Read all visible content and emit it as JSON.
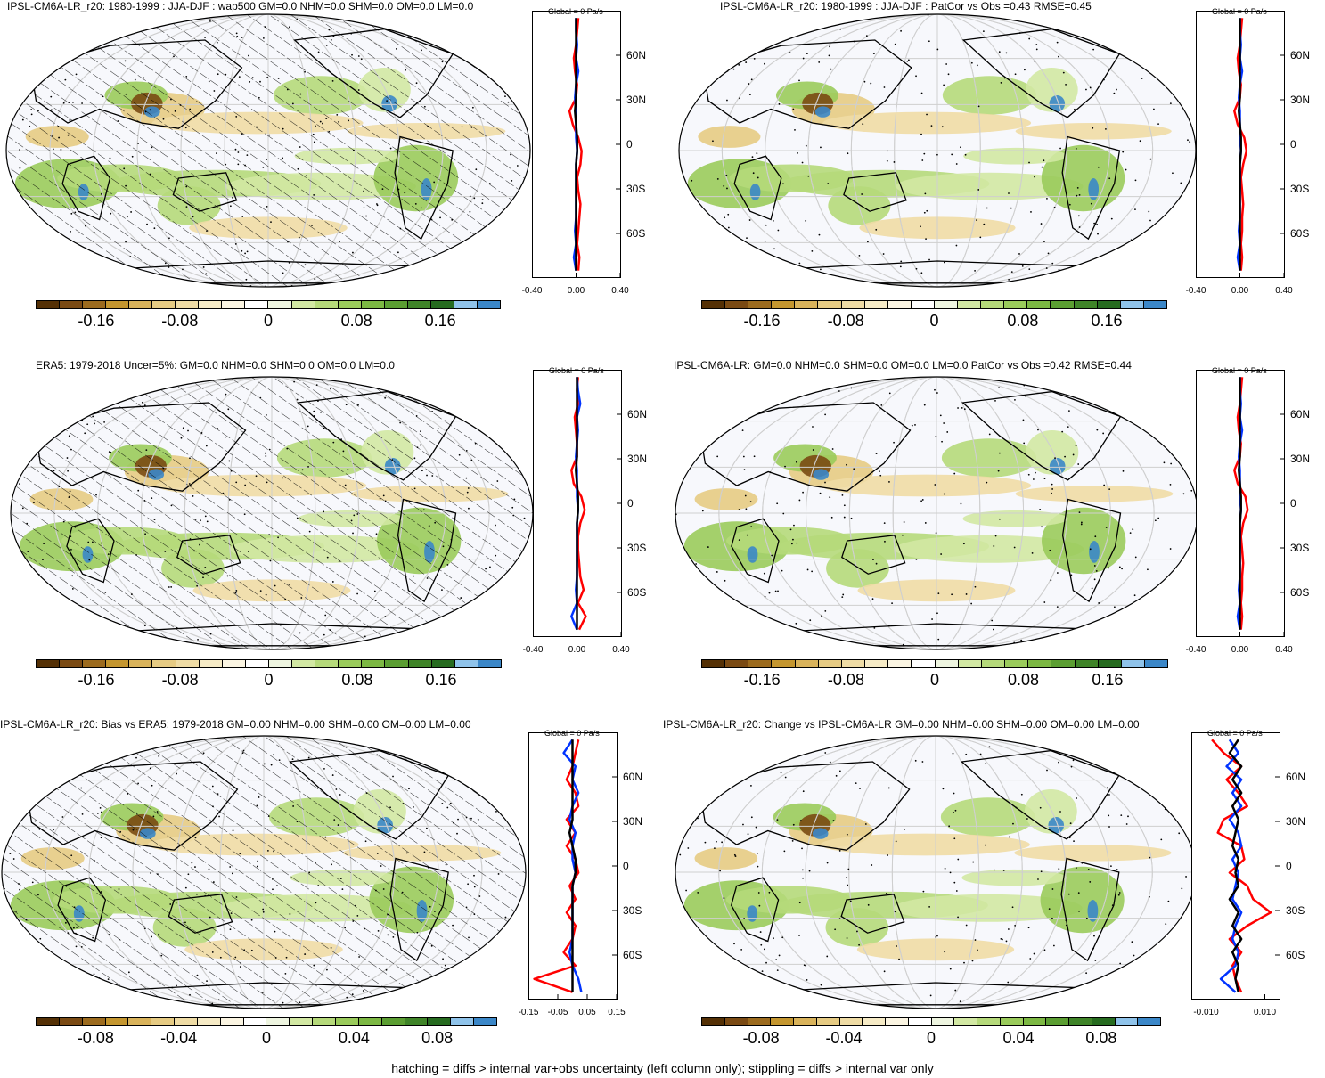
{
  "panels": [
    {
      "id": "p1",
      "title": "IPSL-CM6A-LR_r20: 1980-1999 : JJA-DJF : wap500 GM=0.0 NHM=0.0 SHM=0.0 OM=0.0 LM=0.0",
      "hatched": true,
      "profile": {
        "title": "Global = 0 Pa/s",
        "lat_labels": [
          "60N",
          "30N",
          "0",
          "30S",
          "60S"
        ],
        "x_ticks": [
          "-0.40",
          "0.00",
          "0.40"
        ],
        "x_range": [
          -0.4,
          0.4
        ],
        "red": [
          0.02,
          0.01,
          0.0,
          -0.02,
          -0.01,
          0.01,
          0.0,
          -0.06,
          -0.03,
          0.02,
          0.05,
          0.04,
          0.01,
          0.02,
          0.04,
          0.03,
          0.02,
          0.01,
          0.03,
          0.02
        ],
        "blue": [
          0.0,
          0.0,
          0.01,
          0.0,
          0.02,
          0.0,
          -0.01,
          0.0,
          0.0,
          0.0,
          0.01,
          0.0,
          0.0,
          0.0,
          0.0,
          0.0,
          -0.01,
          0.0,
          -0.02,
          0.0
        ],
        "black": [
          0.0,
          0.0,
          0.0,
          0.0,
          0.0,
          0.0,
          0.0,
          -0.01,
          0.0,
          0.01,
          0.01,
          0.0,
          0.0,
          0.0,
          0.0,
          0.0,
          0.0,
          0.0,
          0.0,
          0.0
        ]
      },
      "colorbar": {
        "labels": [
          "-0.16",
          "-0.08",
          "0",
          "0.08",
          "0.16"
        ]
      }
    },
    {
      "id": "p2",
      "title": "IPSL-CM6A-LR_r20: 1980-1999 : JJA-DJF : PatCor vs Obs =0.43 RMSE=0.45",
      "hatched": false,
      "profile": {
        "title": "Global = 0 Pa/s",
        "lat_labels": [
          "60N",
          "30N",
          "0",
          "30S",
          "60S"
        ],
        "x_ticks": [
          "-0.40",
          "0.00",
          "0.40"
        ],
        "x_range": [
          -0.4,
          0.4
        ],
        "red": [
          0.02,
          0.01,
          0.0,
          -0.02,
          -0.01,
          0.01,
          0.0,
          -0.05,
          -0.02,
          0.04,
          0.06,
          0.03,
          0.01,
          0.02,
          0.03,
          0.02,
          0.02,
          0.01,
          0.02,
          0.01
        ],
        "blue": [
          0.0,
          0.0,
          0.01,
          0.0,
          0.02,
          0.0,
          -0.01,
          0.0,
          0.0,
          0.0,
          0.01,
          0.0,
          0.0,
          0.0,
          0.0,
          0.0,
          -0.01,
          0.0,
          -0.02,
          0.0
        ],
        "black": [
          0.0,
          0.0,
          0.0,
          0.0,
          0.0,
          0.0,
          0.0,
          -0.01,
          0.0,
          0.01,
          0.01,
          0.0,
          0.0,
          0.0,
          0.0,
          0.0,
          0.0,
          0.0,
          0.0,
          0.0
        ]
      },
      "colorbar": {
        "labels": [
          "-0.16",
          "-0.08",
          "0",
          "0.08",
          "0.16"
        ]
      }
    },
    {
      "id": "p3",
      "title": "ERA5: 1979-2018 Uncer=5%: GM=0.0 NHM=0.0 SHM=0.0 OM=0.0 LM=0.0",
      "hatched": true,
      "profile": {
        "title": "Global = 0 Pa/s",
        "lat_labels": [
          "60N",
          "30N",
          "0",
          "30S",
          "60S"
        ],
        "x_ticks": [
          "-0.40",
          "0.00",
          "0.40"
        ],
        "x_range": [
          -0.4,
          0.4
        ],
        "red": [
          0.01,
          0.0,
          0.01,
          -0.02,
          -0.01,
          0.0,
          0.0,
          -0.05,
          -0.03,
          0.04,
          0.07,
          0.03,
          0.01,
          0.01,
          0.02,
          0.03,
          0.06,
          0.01,
          0.08,
          0.02
        ],
        "blue": [
          0.0,
          0.01,
          0.03,
          0.0,
          0.01,
          0.0,
          -0.01,
          0.0,
          0.0,
          0.0,
          0.01,
          0.0,
          0.0,
          0.0,
          0.0,
          0.0,
          -0.01,
          0.0,
          -0.05,
          0.0
        ],
        "black": [
          0.0,
          0.0,
          0.0,
          0.0,
          0.0,
          0.0,
          0.0,
          -0.01,
          0.0,
          0.01,
          0.01,
          0.0,
          0.0,
          0.0,
          0.0,
          0.0,
          0.0,
          0.0,
          0.0,
          0.0
        ]
      },
      "colorbar": {
        "labels": [
          "-0.16",
          "-0.08",
          "0",
          "0.08",
          "0.16"
        ]
      }
    },
    {
      "id": "p4",
      "title": "IPSL-CM6A-LR: GM=0.0 NHM=0.0 SHM=0.0 OM=0.0 LM=0.0 PatCor vs Obs =0.42 RMSE=0.44",
      "hatched": false,
      "profile": {
        "title": "Global = 0 Pa/s",
        "lat_labels": [
          "60N",
          "30N",
          "0",
          "30S",
          "60S"
        ],
        "x_ticks": [
          "-0.40",
          "0.00",
          "0.40"
        ],
        "x_range": [
          -0.4,
          0.4
        ],
        "red": [
          0.02,
          0.01,
          0.0,
          -0.02,
          -0.01,
          0.01,
          0.0,
          -0.05,
          -0.02,
          0.05,
          0.07,
          0.03,
          0.01,
          0.02,
          0.03,
          0.02,
          0.02,
          0.01,
          0.02,
          0.01
        ],
        "blue": [
          0.0,
          0.0,
          0.01,
          0.0,
          0.02,
          0.0,
          -0.01,
          0.0,
          0.0,
          0.0,
          0.01,
          0.0,
          0.0,
          0.0,
          0.0,
          0.0,
          -0.01,
          0.0,
          -0.02,
          0.0
        ],
        "black": [
          0.0,
          0.0,
          0.0,
          0.0,
          0.0,
          0.0,
          0.0,
          -0.01,
          0.0,
          0.01,
          0.01,
          0.0,
          0.0,
          0.0,
          0.0,
          0.0,
          0.0,
          0.0,
          0.0,
          0.0
        ]
      },
      "colorbar": {
        "labels": [
          "-0.16",
          "-0.08",
          "0",
          "0.08",
          "0.16"
        ]
      }
    },
    {
      "id": "p5",
      "title": "IPSL-CM6A-LR_r20: Bias vs ERA5: 1979-2018 GM=0.00 NHM=0.00 SHM=0.00 OM=0.00 LM=0.00",
      "hatched": true,
      "profile": {
        "title": "Global = 0 Pa/s",
        "lat_labels": [
          "60N",
          "30N",
          "0",
          "30S",
          "60S"
        ],
        "x_ticks": [
          "-0.15",
          "-0.05",
          "0.05",
          "0.15"
        ],
        "x_range": [
          -0.15,
          0.15
        ],
        "red": [
          0.02,
          0.01,
          0.0,
          -0.02,
          0.01,
          0.02,
          -0.02,
          0.01,
          -0.02,
          0.01,
          0.02,
          -0.01,
          0.01,
          -0.02,
          0.01,
          0.0,
          -0.03,
          0.01,
          -0.13,
          0.0
        ],
        "blue": [
          0.0,
          -0.03,
          0.01,
          0.0,
          0.02,
          0.0,
          -0.01,
          0.01,
          0.0,
          0.0,
          0.01,
          0.0,
          0.0,
          0.0,
          0.0,
          0.0,
          -0.01,
          0.0,
          0.02,
          0.03
        ],
        "black": [
          0.0,
          0.0,
          0.0,
          0.0,
          0.0,
          0.0,
          0.0,
          -0.01,
          0.0,
          0.01,
          0.01,
          0.0,
          0.0,
          0.0,
          0.0,
          0.0,
          0.0,
          0.0,
          0.0,
          0.0
        ]
      },
      "colorbar": {
        "labels": [
          "-0.08",
          "-0.04",
          "0",
          "0.04",
          "0.08"
        ]
      }
    },
    {
      "id": "p6",
      "title": "IPSL-CM6A-LR_r20: Change vs IPSL-CM6A-LR GM=0.00 NHM=0.00 SHM=0.00 OM=0.00 LM=0.00",
      "hatched": false,
      "profile": {
        "title": "Global = 0 Pa/s",
        "lat_labels": [
          "60N",
          "30N",
          "0",
          "30S",
          "60S"
        ],
        "x_ticks": [
          "-0.010",
          "0.010"
        ],
        "x_range": [
          -0.015,
          0.015
        ],
        "red": [
          -0.008,
          -0.004,
          0.002,
          -0.003,
          0.001,
          0.004,
          -0.004,
          -0.006,
          0.002,
          0.003,
          -0.002,
          0.004,
          0.006,
          0.012,
          0.004,
          -0.002,
          0.002,
          -0.001,
          0.0,
          0.002
        ],
        "blue": [
          -0.002,
          0.001,
          -0.003,
          0.002,
          -0.001,
          0.002,
          -0.002,
          0.001,
          0.002,
          -0.001,
          0.001,
          0.0,
          -0.001,
          0.002,
          0.0,
          -0.001,
          0.001,
          0.0,
          -0.005,
          0.0
        ],
        "black": [
          0.001,
          -0.002,
          0.002,
          -0.001,
          0.002,
          -0.001,
          0.001,
          0.0,
          -0.001,
          0.001,
          0.0,
          0.001,
          -0.002,
          0.001,
          -0.001,
          0.002,
          -0.001,
          0.001,
          0.0,
          0.001
        ]
      },
      "colorbar": {
        "labels": [
          "-0.08",
          "-0.04",
          "0",
          "0.04",
          "0.08"
        ]
      }
    }
  ],
  "colorbar_colors": [
    "#543005",
    "#7a4a13",
    "#9c6b1e",
    "#c4962f",
    "#d9b35b",
    "#e6cb83",
    "#efdca5",
    "#f6ebc6",
    "#fbf5e2",
    "#ffffff",
    "#eef5e0",
    "#d2e8a3",
    "#b5d97a",
    "#9acb5b",
    "#7cb843",
    "#5b9e32",
    "#3f8428",
    "#266b1f",
    "#8fc3ea",
    "#3b87c8"
  ],
  "footnote": "hatching = diffs > internal var+obs uncertainty (left column only); stippling = diffs > internal var only"
}
